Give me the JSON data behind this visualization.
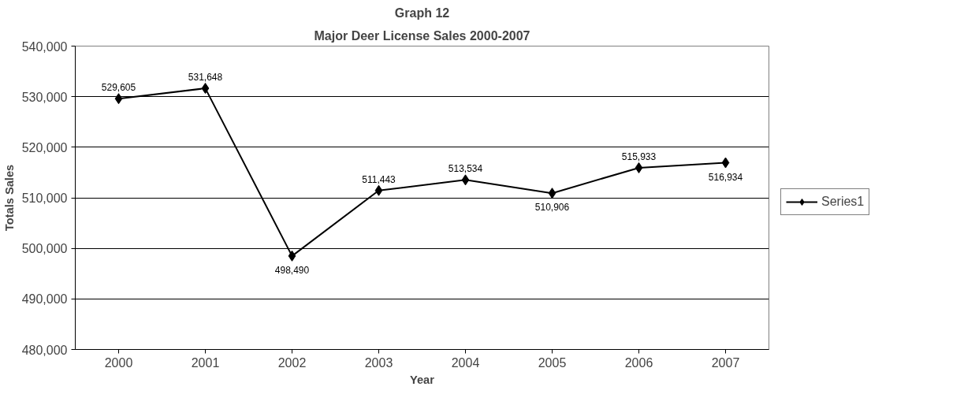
{
  "chart_data": {
    "type": "line",
    "title": "Graph 12",
    "subtitle": "Major Deer License Sales 2000-2007",
    "xlabel": "Year",
    "ylabel": "Totals Sales",
    "categories": [
      "2000",
      "2001",
      "2002",
      "2003",
      "2004",
      "2005",
      "2006",
      "2007"
    ],
    "series": [
      {
        "name": "Series1",
        "color": "#000000",
        "values": [
          529605,
          531648,
          498490,
          511443,
          513534,
          510906,
          515933,
          516934
        ],
        "value_labels": [
          "529,605",
          "531,648",
          "498,490",
          "511,443",
          "513,534",
          "510,906",
          "515,933",
          "516,934"
        ]
      }
    ],
    "ylim": [
      480000,
      540000
    ],
    "yticks": [
      {
        "value": 480000,
        "label": "480,000"
      },
      {
        "value": 490000,
        "label": "490,000"
      },
      {
        "value": 500000,
        "label": "500,000"
      },
      {
        "value": 510000,
        "label": "510,000"
      },
      {
        "value": 520000,
        "label": "520,000"
      },
      {
        "value": 530000,
        "label": "530,000"
      },
      {
        "value": 540000,
        "label": "540,000"
      }
    ],
    "grid": "y",
    "legend": "right",
    "marker": "diamond",
    "line_style": "solid",
    "data_labels": true
  }
}
